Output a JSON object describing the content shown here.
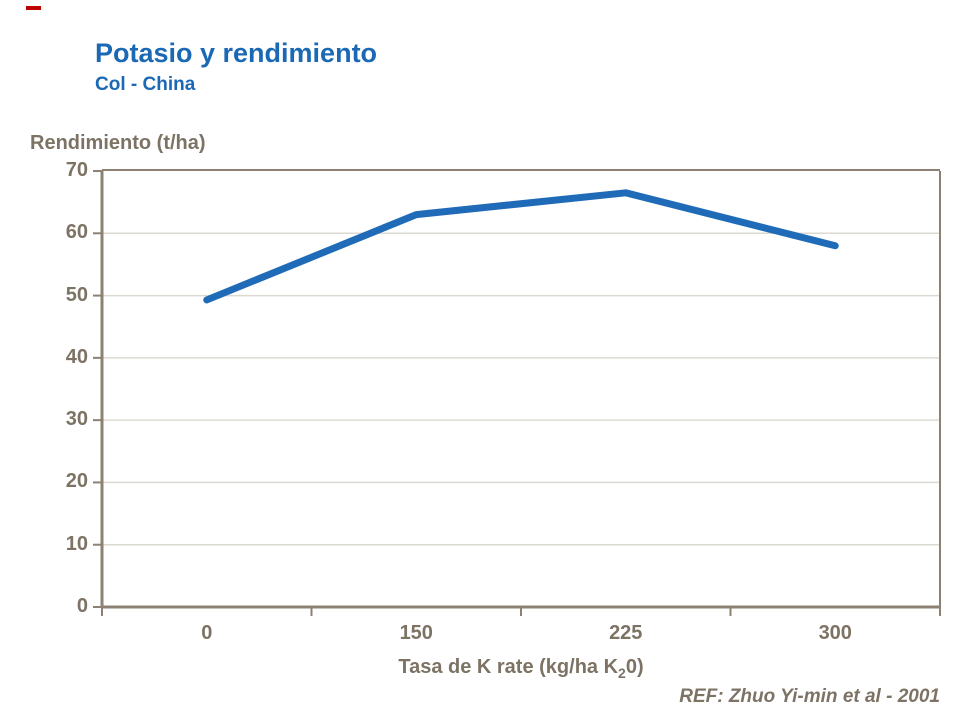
{
  "marker": {
    "name": "red-dash"
  },
  "header": {
    "title": "Potasio y rendimiento",
    "subtitle": "Col - China"
  },
  "chart_data": {
    "type": "line",
    "title": "Potasio y rendimiento",
    "subtitle": "Col - China",
    "categories": [
      "0",
      "150",
      "225",
      "300"
    ],
    "series": [
      {
        "name": "Rendimiento",
        "values": [
          49.3,
          63,
          66.5,
          58
        ]
      }
    ],
    "ylabel": "Rendimiento (t/ha)",
    "xlabel": "Tasa de K rate (kg/ha K20)",
    "xlabel_parts": {
      "pre": "Tasa de K rate (kg/ha K",
      "sub": "2",
      "post": "0)"
    },
    "yticks": [
      70,
      60,
      50,
      40,
      30,
      20,
      10,
      0
    ],
    "ylim": [
      0,
      70
    ],
    "grid": true,
    "legend_position": "none",
    "line_color": "#1f6bb8",
    "axis_color": "#8d8174",
    "grid_color": "#dcd9d3",
    "text_color": "#7d7365",
    "title_color": "#1b69b5"
  },
  "footer": {
    "ref": "REF: Zhuo Yi-min et al - 2001"
  }
}
